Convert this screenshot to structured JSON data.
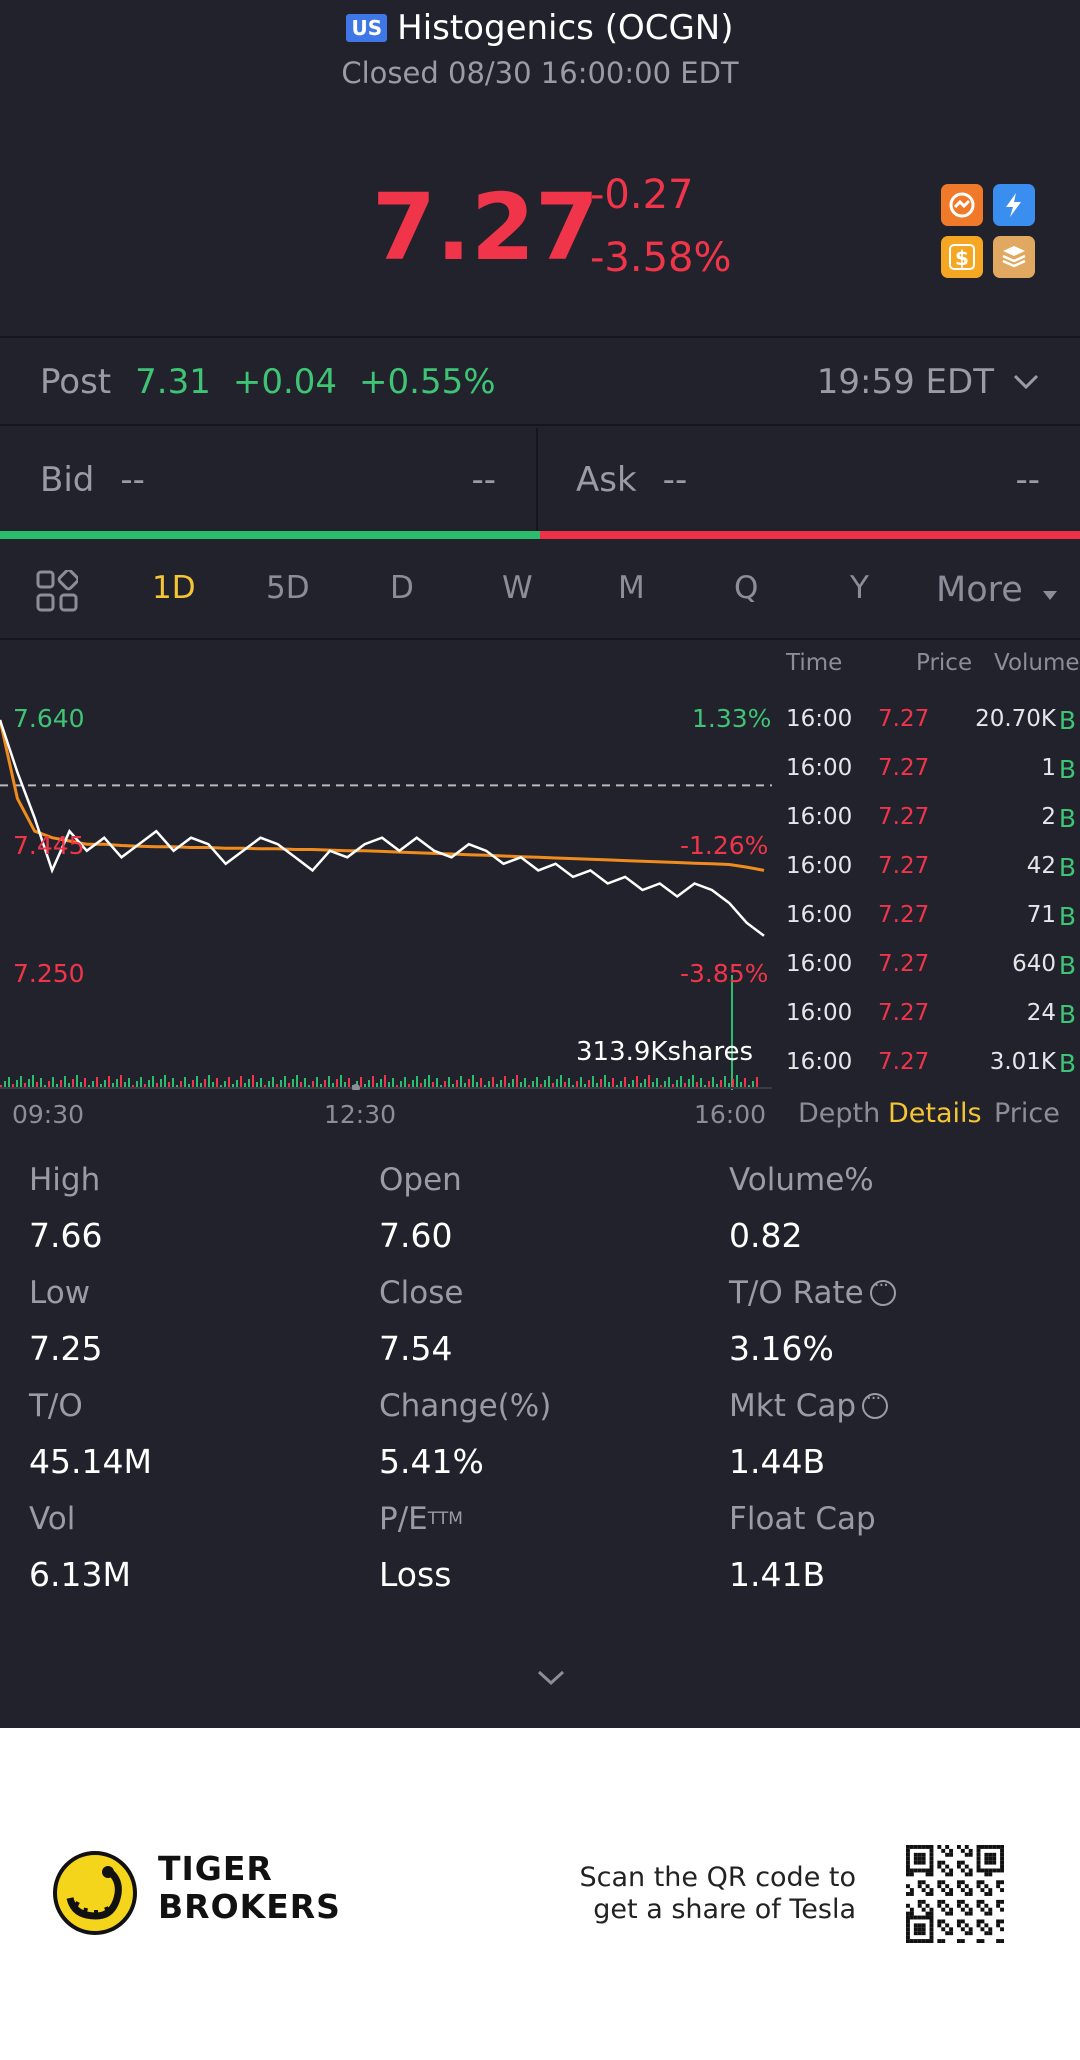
{
  "header": {
    "region_badge": "US",
    "title": "Histogenics (OCGN)",
    "status": "Closed 08/30 16:00:00 EDT"
  },
  "quote": {
    "price": "7.27",
    "change": "-0.27",
    "change_pct": "-3.58%"
  },
  "post_market": {
    "label": "Post",
    "price": "7.31",
    "change": "+0.04",
    "change_pct": "+0.55%",
    "time": "19:59 EDT"
  },
  "bid_ask": {
    "bid_label": "Bid",
    "bid_price": "--",
    "bid_size": "--",
    "ask_label": "Ask",
    "ask_price": "--",
    "ask_size": "--"
  },
  "tabs": [
    "1D",
    "5D",
    "D",
    "W",
    "M",
    "Q",
    "Y",
    "More"
  ],
  "active_tab": "1D",
  "chart_data": {
    "type": "line",
    "x_ticks": [
      "09:30",
      "12:30",
      "16:00"
    ],
    "price_labels": [
      "7.640",
      "7.445",
      "7.250"
    ],
    "pct_labels": [
      "1.33%",
      "-1.26%",
      "-3.85%"
    ],
    "volume_label": "313.9Kshares",
    "series": [
      {
        "name": "",
        "color": "#ffffff",
        "values": [
          7.64,
          7.56,
          7.49,
          7.41,
          7.47,
          7.44,
          7.46,
          7.43,
          7.45,
          7.47,
          7.44,
          7.46,
          7.45,
          7.42,
          7.44,
          7.46,
          7.45,
          7.43,
          7.41,
          7.44,
          7.43,
          7.45,
          7.46,
          7.44,
          7.46,
          7.44,
          7.43,
          7.45,
          7.44,
          7.42,
          7.43,
          7.41,
          7.42,
          7.4,
          7.41,
          7.39,
          7.4,
          7.38,
          7.39,
          7.37,
          7.39,
          7.38,
          7.36,
          7.33,
          7.31
        ]
      },
      {
        "name": "",
        "color": "#f08c1e",
        "values": [
          7.64,
          7.52,
          7.47,
          7.46,
          7.455,
          7.45,
          7.45,
          7.448,
          7.447,
          7.446,
          7.446,
          7.445,
          7.445,
          7.444,
          7.444,
          7.443,
          7.443,
          7.442,
          7.442,
          7.441,
          7.44,
          7.44,
          7.439,
          7.438,
          7.437,
          7.436,
          7.435,
          7.434,
          7.433,
          7.432,
          7.431,
          7.43,
          7.429,
          7.428,
          7.427,
          7.426,
          7.425,
          7.424,
          7.423,
          7.422,
          7.421,
          7.42,
          7.419,
          7.415,
          7.41
        ]
      }
    ],
    "reference_line": 7.54,
    "ylim": [
      7.25,
      7.64
    ]
  },
  "trades": {
    "headers": [
      "Time",
      "Price",
      "Volume"
    ],
    "rows": [
      {
        "time": "16:00",
        "price": "7.27",
        "volume": "20.70K",
        "side": "B"
      },
      {
        "time": "16:00",
        "price": "7.27",
        "volume": "1",
        "side": "B"
      },
      {
        "time": "16:00",
        "price": "7.27",
        "volume": "2",
        "side": "B"
      },
      {
        "time": "16:00",
        "price": "7.27",
        "volume": "42",
        "side": "B"
      },
      {
        "time": "16:00",
        "price": "7.27",
        "volume": "71",
        "side": "B"
      },
      {
        "time": "16:00",
        "price": "7.27",
        "volume": "640",
        "side": "B"
      },
      {
        "time": "16:00",
        "price": "7.27",
        "volume": "24",
        "side": "B"
      },
      {
        "time": "16:00",
        "price": "7.27",
        "volume": "3.01K",
        "side": "B"
      }
    ],
    "sub_tabs": [
      "Depth",
      "Details",
      "Price"
    ],
    "active_sub_tab": "Details"
  },
  "stats": [
    {
      "label": "High",
      "value": "7.66"
    },
    {
      "label": "Open",
      "value": "7.60"
    },
    {
      "label": "Volume%",
      "value": "0.82"
    },
    {
      "label": "Low",
      "value": "7.25"
    },
    {
      "label": "Close",
      "value": "7.54"
    },
    {
      "label": "T/O Rate",
      "value": "3.16%"
    },
    {
      "label": "T/O",
      "value": "45.14M"
    },
    {
      "label": "Change(%)",
      "value": "5.41%"
    },
    {
      "label": "Mkt Cap",
      "value": "1.44B"
    },
    {
      "label": "Vol",
      "value": "6.13M"
    },
    {
      "label": "P/E",
      "sup": "TTM",
      "value": "Loss"
    },
    {
      "label": "Float Cap",
      "value": "1.41B"
    }
  ],
  "footer": {
    "brand_line1": "TIGER",
    "brand_line2": "BROKERS",
    "scan_line1": "Scan the QR code to",
    "scan_line2": "get a share of Tesla"
  },
  "colors": {
    "up": "#3ec474",
    "down": "#f0354a",
    "accent": "#f4c534",
    "background": "#21222b"
  }
}
